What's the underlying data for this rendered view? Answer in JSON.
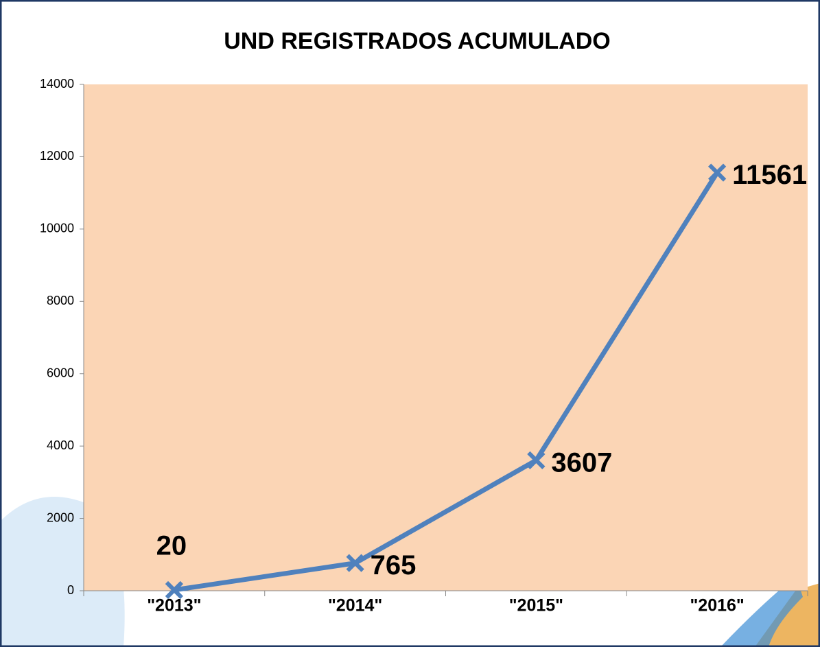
{
  "chart_data": {
    "type": "line",
    "title": "UND REGISTRADOS ACUMULADO",
    "categories": [
      "\"2013\"",
      "\"2014\"",
      "\"2015\"",
      "\"2016\""
    ],
    "series": [
      {
        "name": "UND REGISTRADOS ACUMULADO",
        "color": "#4f81bd",
        "values": [
          20,
          765,
          3607,
          11561
        ]
      }
    ],
    "ylim": [
      0,
      14000
    ],
    "yticks": [
      0,
      2000,
      4000,
      6000,
      8000,
      10000,
      12000,
      14000
    ],
    "plot_background": "#fbd5b5",
    "marker": "x"
  }
}
